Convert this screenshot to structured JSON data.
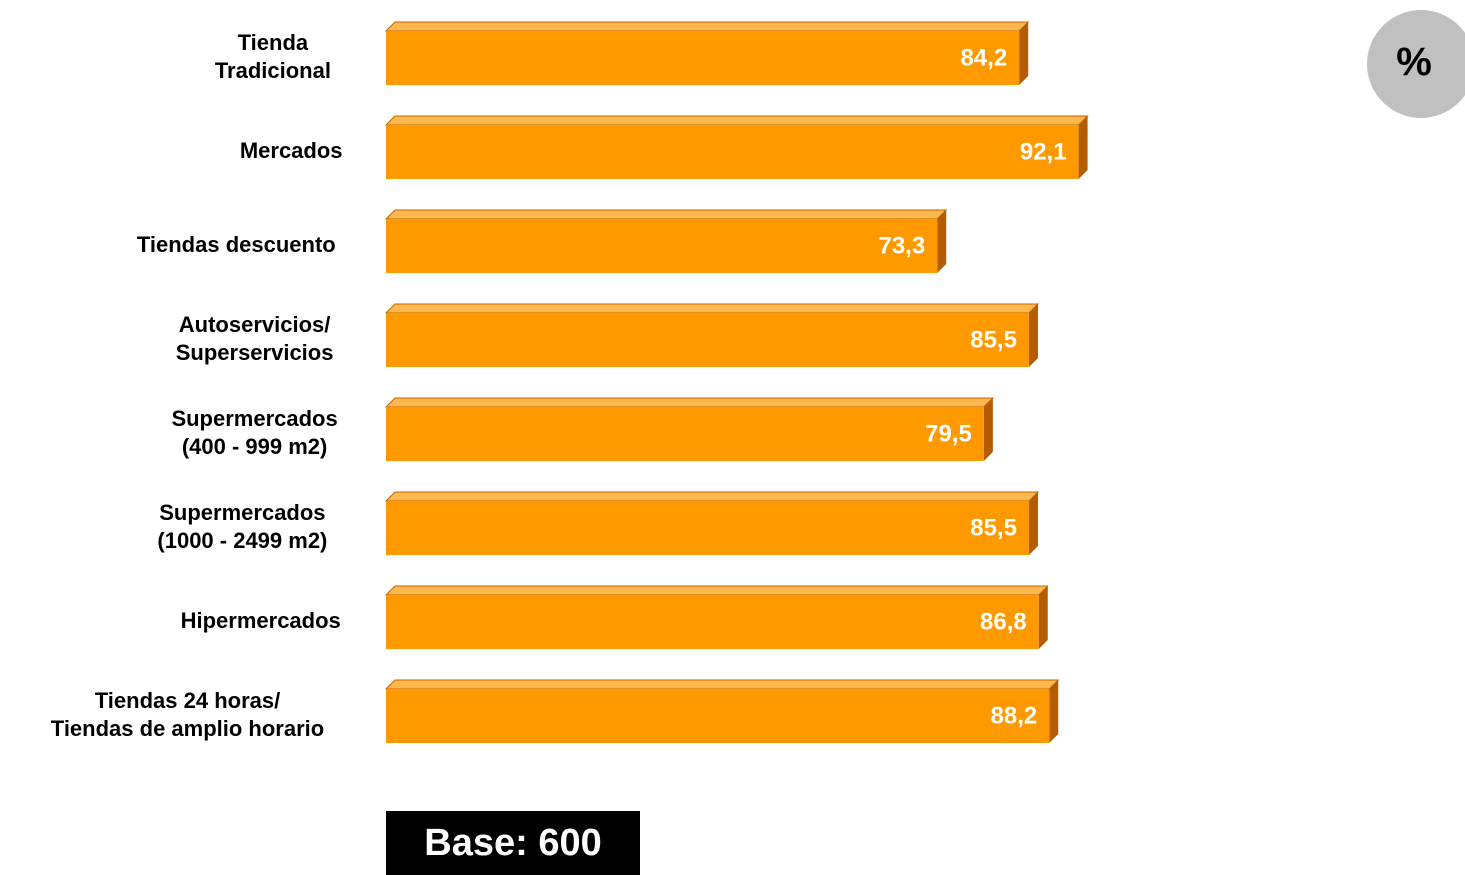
{
  "chart_data": {
    "type": "bar",
    "orientation": "horizontal",
    "categories": [
      [
        "Tienda",
        "Tradicional"
      ],
      [
        "Mercados"
      ],
      [
        "Tiendas descuento"
      ],
      [
        "Autoservicios/",
        "Superservicios"
      ],
      [
        "Supermercados",
        "(400 - 999 m2)"
      ],
      [
        "Supermercados",
        "(1000 - 2499 m2)"
      ],
      [
        "Hipermercados"
      ],
      [
        "Tiendas 24 horas/",
        "Tiendas de amplio horario"
      ]
    ],
    "values": [
      84.2,
      92.1,
      73.3,
      85.5,
      79.5,
      85.5,
      86.8,
      88.2
    ],
    "value_labels": [
      "84,2",
      "92,1",
      "73,3",
      "85,5",
      "79,5",
      "85,5",
      "86,8",
      "88,2"
    ],
    "xlim": [
      0,
      100
    ],
    "grid": false,
    "bar_color": "#ff9900",
    "bar_shade_color": "#b35c00",
    "unit_label": "%",
    "base_label": "Base: 600"
  }
}
